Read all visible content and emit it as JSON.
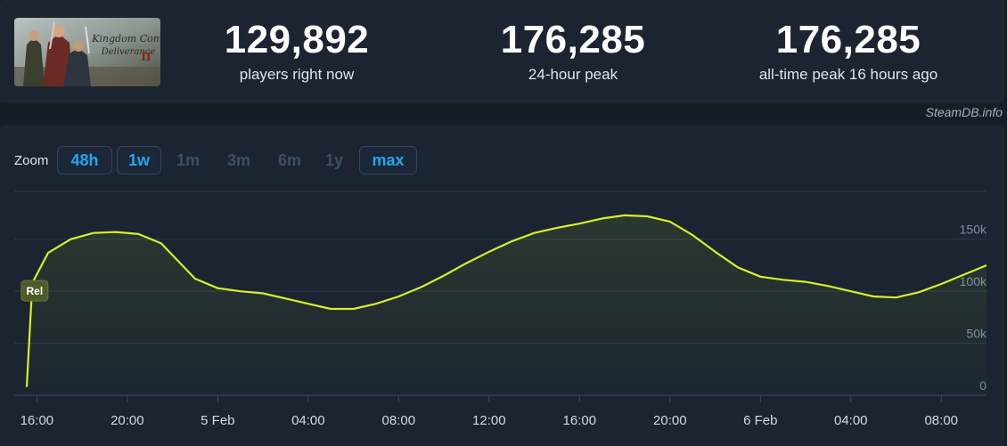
{
  "stats": [
    {
      "value": "129,892",
      "label": "players right now"
    },
    {
      "value": "176,285",
      "label": "24-hour peak"
    },
    {
      "value": "176,285",
      "label": "all-time peak 16 hours ago"
    }
  ],
  "credit": "SteamDB.info",
  "zoom": {
    "label": "Zoom",
    "options": [
      {
        "label": "48h",
        "active": true
      },
      {
        "label": "1w",
        "active": true
      },
      {
        "label": "1m",
        "active": false
      },
      {
        "label": "3m",
        "active": false
      },
      {
        "label": "6m",
        "active": false
      },
      {
        "label": "1y",
        "active": false
      },
      {
        "label": "max",
        "active": true
      }
    ]
  },
  "colors": {
    "line": "#d4f02a",
    "active_zoom": "#1ea8ee",
    "background": "#171d25",
    "panel": "#1b2430"
  },
  "chart_data": {
    "type": "line",
    "series": [
      {
        "points": [
          [
            -1.45,
            8000
          ],
          [
            -1.2,
            108000
          ],
          [
            -0.5,
            137000
          ],
          [
            0.5,
            150000
          ],
          [
            1.5,
            156000
          ],
          [
            2.5,
            157000
          ],
          [
            3.5,
            155000
          ],
          [
            4.5,
            146000
          ],
          [
            6.0,
            112000
          ],
          [
            7.0,
            103000
          ],
          [
            8.0,
            100000
          ],
          [
            9.0,
            98000
          ],
          [
            10.0,
            93000
          ],
          [
            11.0,
            88000
          ],
          [
            12.0,
            83000
          ],
          [
            13.0,
            83000
          ],
          [
            14.0,
            88000
          ],
          [
            15.0,
            95000
          ],
          [
            16.0,
            104000
          ],
          [
            17.0,
            115000
          ],
          [
            18.0,
            127000
          ],
          [
            19.0,
            138000
          ],
          [
            20.0,
            148000
          ],
          [
            21.0,
            156000
          ],
          [
            22.0,
            161000
          ],
          [
            23.0,
            165000
          ],
          [
            24.0,
            170000
          ],
          [
            25.0,
            173000
          ],
          [
            26.0,
            172000
          ],
          [
            27.0,
            167000
          ],
          [
            28.0,
            154000
          ],
          [
            29.0,
            138000
          ],
          [
            30.0,
            123000
          ],
          [
            31.0,
            114000
          ],
          [
            32.0,
            111000
          ],
          [
            33.0,
            109000
          ],
          [
            34.0,
            105000
          ],
          [
            35.0,
            100000
          ],
          [
            36.0,
            95000
          ],
          [
            37.0,
            94000
          ],
          [
            38.0,
            99000
          ],
          [
            39.0,
            107000
          ],
          [
            40.0,
            116000
          ],
          [
            41.0,
            125000
          ]
        ]
      }
    ],
    "x_ticks": [
      {
        "h": -1,
        "label": "16:00"
      },
      {
        "h": 3,
        "label": "20:00"
      },
      {
        "h": 7,
        "label": "5 Feb"
      },
      {
        "h": 11,
        "label": "04:00"
      },
      {
        "h": 15,
        "label": "08:00"
      },
      {
        "h": 19,
        "label": "12:00"
      },
      {
        "h": 23,
        "label": "16:00"
      },
      {
        "h": 27,
        "label": "20:00"
      },
      {
        "h": 31,
        "label": "6 Feb"
      },
      {
        "h": 35,
        "label": "04:00"
      },
      {
        "h": 39,
        "label": "08:00"
      }
    ],
    "y_ticks": [
      {
        "value": 0,
        "label": "0"
      },
      {
        "value": 50000,
        "label": "50k"
      },
      {
        "value": 100000,
        "label": "100k"
      },
      {
        "value": 150000,
        "label": "150k"
      }
    ],
    "ylim": [
      0,
      196000
    ],
    "xlim": [
      -2,
      41
    ],
    "flags": [
      {
        "h": -1.1,
        "value": 100000,
        "label": "Rel"
      }
    ],
    "grid": true
  }
}
